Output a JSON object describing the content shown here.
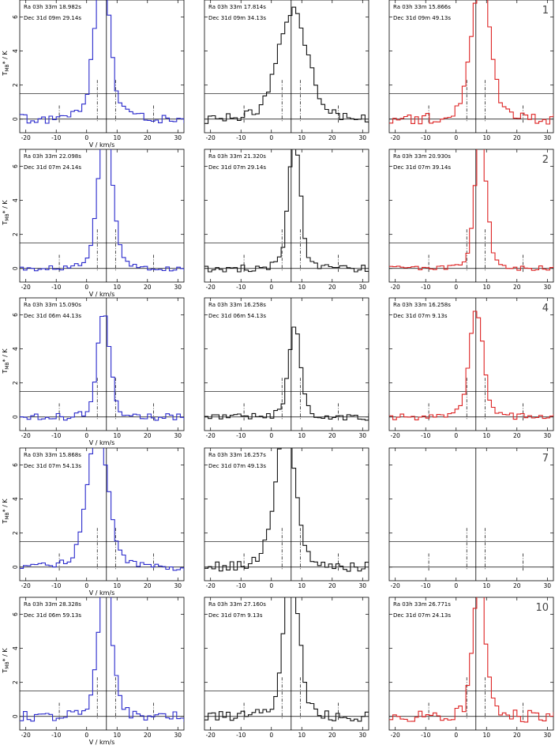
{
  "x_axis_label": "V / km/s",
  "y_axis_label": "T",
  "y_axis_label_sub": "MB",
  "y_axis_label_tail": "* / K",
  "colors": {
    "left": "#2a2acc",
    "middle": "#111111",
    "right": "#dd2222"
  },
  "rows": [
    {
      "number": "1",
      "panels": [
        {
          "ra": "Ra 03h 33m 18.982s",
          "dec": "Dec 31d 09m 29.14s"
        },
        {
          "ra": "Ra 03h 33m 17.814s",
          "dec": "Dec 31d 09m 34.13s"
        },
        {
          "ra": "Ra 03h 33m 15.866s",
          "dec": "Dec 31d 09m 49.13s"
        }
      ]
    },
    {
      "number": "2",
      "panels": [
        {
          "ra": "Ra 03h 33m 22.098s",
          "dec": "Dec 31d 07m 24.14s"
        },
        {
          "ra": "Ra 03h 33m 21.320s",
          "dec": "Dec 31d 07m 29.14s"
        },
        {
          "ra": "Ra 03h 33m 20.930s",
          "dec": "Dec 31d 07m 39.14s"
        }
      ]
    },
    {
      "number": "4",
      "panels": [
        {
          "ra": "Ra 03h 33m 15.090s",
          "dec": "Dec 31d 06m 44.13s"
        },
        {
          "ra": "Ra 03h 33m 16.258s",
          "dec": "Dec 31d 06m 54.13s"
        },
        {
          "ra": "Ra 03h 33m 16.258s",
          "dec": "Dec 31d 07m  9.13s"
        }
      ]
    },
    {
      "number": "7",
      "panels": [
        {
          "ra": "Ra 03h 33m 15.868s",
          "dec": "Dec 31d 07m 54.13s"
        },
        {
          "ra": "Ra 03h 33m 16.257s",
          "dec": "Dec 31d 07m 49.13s"
        },
        {
          "ra": "",
          "dec": ""
        }
      ]
    },
    {
      "number": "10",
      "panels": [
        {
          "ra": "Ra 03h 33m 28.328s",
          "dec": "Dec 31d 06m 59.13s"
        },
        {
          "ra": "Ra 03h 33m 27.160s",
          "dec": "Dec 31d 07m  9.13s"
        },
        {
          "ra": "Ra 03h 33m 26.771s",
          "dec": "Dec 31d 07m 24.13s"
        }
      ]
    }
  ],
  "chart_data": {
    "type": "line",
    "layout": "5 rows x 3 columns of step spectra",
    "xlim": [
      -22,
      32
    ],
    "ylim": [
      -0.8,
      7
    ],
    "x_ticks": [
      -20,
      -10,
      0,
      10,
      20,
      30
    ],
    "y_ticks": [
      0,
      2,
      4,
      6
    ],
    "reference_lines": {
      "horizontal": [
        0,
        1.5
      ],
      "vertical_solid": 6.5,
      "vertical_dashdot": [
        -9,
        3.5,
        9.5,
        22
      ]
    },
    "velocity_grid": {
      "start": -22,
      "step": 1.2
    },
    "spectra": [
      [
        {
          "peak_v": 4.5,
          "amp": 7.8,
          "width": 3.5,
          "noise": 0.3,
          "seed": 11
        },
        {
          "peak_v": 6.5,
          "amp": 5.8,
          "width": 6.5,
          "noise": 0.3,
          "seed": 12
        },
        {
          "peak_v": 7.5,
          "amp": 7.5,
          "width": 4.2,
          "noise": 0.3,
          "seed": 13
        }
      ],
      [
        {
          "peak_v": 5.5,
          "amp": 7.8,
          "width": 3.2,
          "noise": 0.15,
          "seed": 21
        },
        {
          "peak_v": 7.0,
          "amp": 7.0,
          "width": 2.6,
          "noise": 0.2,
          "seed": 22
        },
        {
          "peak_v": 7.5,
          "amp": 7.0,
          "width": 2.6,
          "noise": 0.15,
          "seed": 23
        }
      ],
      [
        {
          "peak_v": 5.0,
          "amp": 5.5,
          "width": 2.8,
          "noise": 0.2,
          "seed": 31
        },
        {
          "peak_v": 7.0,
          "amp": 4.9,
          "width": 2.6,
          "noise": 0.2,
          "seed": 32
        },
        {
          "peak_v": 6.0,
          "amp": 5.8,
          "width": 3.0,
          "noise": 0.2,
          "seed": 33
        }
      ],
      [
        {
          "peak_v": 3.0,
          "amp": 7.5,
          "width": 4.5,
          "noise": 0.2,
          "seed": 41
        },
        {
          "peak_v": 4.0,
          "amp": 7.5,
          "width": 4.5,
          "noise": 0.3,
          "seed": 42
        },
        null
      ],
      [
        {
          "peak_v": 5.5,
          "amp": 7.5,
          "width": 3.0,
          "noise": 0.3,
          "seed": 51
        },
        {
          "peak_v": 6.0,
          "amp": 7.8,
          "width": 3.4,
          "noise": 0.3,
          "seed": 52
        },
        {
          "peak_v": 7.0,
          "amp": 7.8,
          "width": 2.6,
          "noise": 0.35,
          "seed": 53
        }
      ]
    ]
  }
}
